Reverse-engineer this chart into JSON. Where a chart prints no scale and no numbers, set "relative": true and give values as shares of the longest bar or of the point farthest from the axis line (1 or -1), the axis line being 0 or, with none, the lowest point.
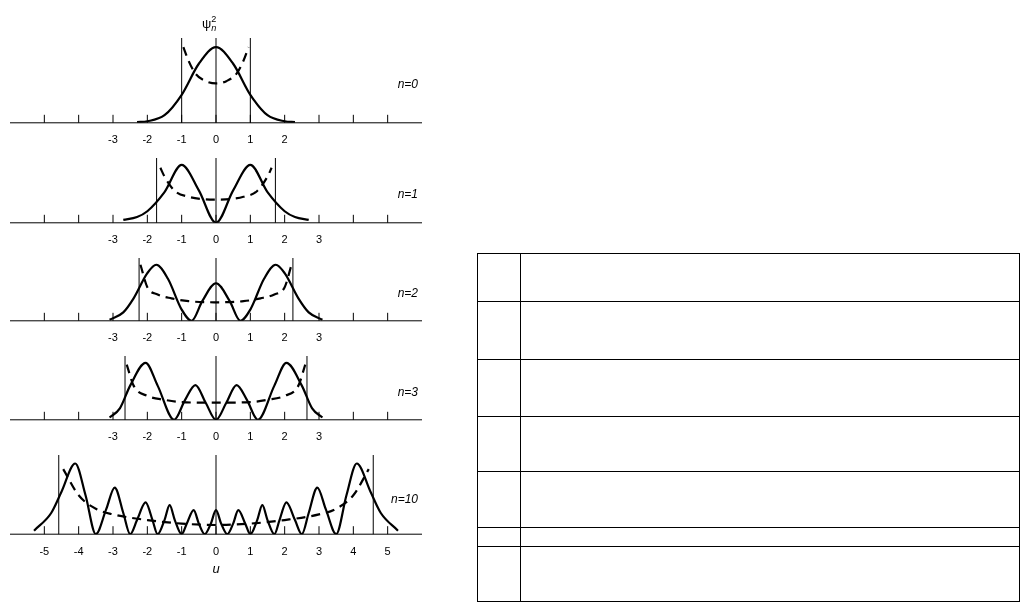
{
  "chart_data": [
    {
      "type": "line",
      "relative": true,
      "ylabel": "ψ$^{2}$$_{n}$",
      "annotations": [
        "n=0"
      ],
      "xlim": [
        -6,
        6
      ],
      "xticks": [
        {
          "value": -5,
          "label": null
        },
        {
          "value": -4,
          "label": null
        },
        -3,
        -2,
        -1,
        0,
        1,
        2,
        {
          "value": 3,
          "label": null
        },
        {
          "value": 4,
          "label": null
        },
        {
          "value": 5,
          "label": null
        }
      ],
      "ref_lines": [
        {
          "axis": "x",
          "value": -1
        },
        {
          "axis": "x",
          "value": 0
        },
        {
          "axis": "x",
          "value": 1
        }
      ],
      "series": [
        {
          "color": "#000000",
          "line_style": "solid",
          "x": [
            -2.3,
            -2,
            -1.5,
            -1,
            -0.5,
            0,
            0.5,
            1,
            1.5,
            2,
            2.3
          ],
          "values": [
            0.01,
            0.02,
            0.1,
            0.37,
            0.78,
            1,
            0.78,
            0.37,
            0.1,
            0.02,
            0.01
          ]
        },
        {
          "color": "#000000",
          "line_style": "dashed",
          "x": [
            -0.95,
            -0.8,
            -0.6,
            -0.3,
            0,
            0.3,
            0.6,
            0.8,
            0.95
          ],
          "values": [
            1,
            0.82,
            0.65,
            0.55,
            0.52,
            0.55,
            0.65,
            0.82,
            1
          ]
        }
      ]
    },
    {
      "type": "line",
      "relative": true,
      "annotations": [
        "n=1"
      ],
      "xlim": [
        -6,
        6
      ],
      "xticks": [
        {
          "value": -5,
          "label": null
        },
        {
          "value": -4,
          "label": null
        },
        -3,
        -2,
        -1,
        0,
        1,
        2,
        3,
        {
          "value": 4,
          "label": null
        },
        {
          "value": 5,
          "label": null
        }
      ],
      "ref_lines": [
        {
          "axis": "x",
          "value": -1.73
        },
        {
          "axis": "x",
          "value": 0
        },
        {
          "axis": "x",
          "value": 1.73
        }
      ],
      "series": [
        {
          "color": "#000000",
          "line_style": "solid",
          "x": [
            -2.7,
            -2.3,
            -2,
            -1.5,
            -1,
            -0.5,
            0,
            0.5,
            1,
            1.5,
            2,
            2.3,
            2.7
          ],
          "values": [
            0.05,
            0.1,
            0.2,
            0.53,
            1,
            0.56,
            0,
            0.56,
            1,
            0.53,
            0.2,
            0.1,
            0.05
          ]
        },
        {
          "color": "#000000",
          "line_style": "dashed",
          "x": [
            -1.62,
            -1.5,
            -1.2,
            -0.8,
            -0.4,
            0,
            0.4,
            0.8,
            1.2,
            1.5,
            1.62
          ],
          "values": [
            0.95,
            0.8,
            0.55,
            0.45,
            0.41,
            0.4,
            0.41,
            0.45,
            0.55,
            0.8,
            0.95
          ]
        }
      ]
    },
    {
      "type": "line",
      "relative": true,
      "annotations": [
        "n=2"
      ],
      "xlim": [
        -6,
        6
      ],
      "xticks": [
        {
          "value": -5,
          "label": null
        },
        {
          "value": -4,
          "label": null
        },
        -3,
        -2,
        -1,
        0,
        1,
        2,
        3,
        {
          "value": 4,
          "label": null
        },
        {
          "value": 5,
          "label": null
        }
      ],
      "ref_lines": [
        {
          "axis": "x",
          "value": -2.24
        },
        {
          "axis": "x",
          "value": 0
        },
        {
          "axis": "x",
          "value": 2.24
        }
      ],
      "series": [
        {
          "color": "#000000",
          "line_style": "solid",
          "x": [
            -3.1,
            -2.7,
            -2.4,
            -2,
            -1.74,
            -1.4,
            -1,
            -0.71,
            -0.4,
            0,
            0.4,
            0.71,
            1,
            1.4,
            1.74,
            2,
            2.4,
            2.7,
            3.1
          ],
          "values": [
            0.02,
            0.15,
            0.4,
            0.85,
            1,
            0.75,
            0.2,
            0,
            0.35,
            0.67,
            0.35,
            0,
            0.2,
            0.75,
            1,
            0.85,
            0.4,
            0.15,
            0.02
          ]
        },
        {
          "color": "#000000",
          "line_style": "dashed",
          "x": [
            -2.2,
            -2,
            -1.7,
            -1.3,
            -0.8,
            0,
            0.8,
            1.3,
            1.7,
            2,
            2.2
          ],
          "values": [
            1,
            0.6,
            0.47,
            0.4,
            0.35,
            0.33,
            0.35,
            0.4,
            0.47,
            0.6,
            1
          ]
        }
      ]
    },
    {
      "type": "line",
      "relative": true,
      "annotations": [
        "n=3"
      ],
      "xlim": [
        -6,
        6
      ],
      "xticks": [
        {
          "value": -5,
          "label": null
        },
        {
          "value": -4,
          "label": null
        },
        -3,
        -2,
        -1,
        0,
        1,
        2,
        3,
        {
          "value": 4,
          "label": null
        },
        {
          "value": 5,
          "label": null
        }
      ],
      "ref_lines": [
        {
          "axis": "x",
          "value": -2.65
        },
        {
          "axis": "x",
          "value": 0
        },
        {
          "axis": "x",
          "value": 2.65
        }
      ],
      "series": [
        {
          "color": "#000000",
          "line_style": "solid",
          "x": [
            -3.1,
            -2.8,
            -2.5,
            -2.05,
            -1.7,
            -1.22,
            -0.9,
            -0.6,
            -0.3,
            0,
            0.3,
            0.6,
            0.9,
            1.22,
            1.7,
            2.05,
            2.5,
            2.8,
            3.1
          ],
          "values": [
            0.04,
            0.2,
            0.6,
            1,
            0.6,
            0,
            0.35,
            0.61,
            0.3,
            0,
            0.3,
            0.61,
            0.35,
            0,
            0.6,
            1,
            0.6,
            0.2,
            0.04
          ]
        },
        {
          "color": "#000000",
          "line_style": "dashed",
          "x": [
            -2.6,
            -2.4,
            -2,
            -1.5,
            -1,
            0,
            1,
            1.5,
            2,
            2.4,
            2.6
          ],
          "values": [
            0.97,
            0.6,
            0.42,
            0.35,
            0.31,
            0.3,
            0.31,
            0.35,
            0.42,
            0.6,
            0.97
          ]
        }
      ]
    },
    {
      "type": "line",
      "relative": true,
      "xlabel": "u",
      "annotations": [
        "n=10"
      ],
      "xlim": [
        -6,
        6
      ],
      "xticks": [
        -5,
        -4,
        -3,
        -2,
        -1,
        0,
        1,
        2,
        3,
        4,
        5
      ],
      "ref_lines": [
        {
          "axis": "x",
          "value": -4.58
        },
        {
          "axis": "x",
          "value": 0
        },
        {
          "axis": "x",
          "value": 4.58
        }
      ],
      "series": [
        {
          "color": "#000000",
          "line_style": "solid",
          "x": [
            -5.3,
            -4.8,
            -4.5,
            -4.1,
            -3.8,
            -3.5,
            -3.2,
            -2.95,
            -2.7,
            -2.5,
            -2.3,
            -2.05,
            -1.85,
            -1.7,
            -1.5,
            -1.35,
            -1.2,
            -1,
            -0.85,
            -0.65,
            -0.5,
            -0.33,
            -0.15,
            0,
            0.15,
            0.33,
            0.5,
            0.65,
            0.85,
            1,
            1.2,
            1.35,
            1.5,
            1.7,
            1.85,
            2.05,
            2.3,
            2.5,
            2.7,
            2.95,
            3.2,
            3.5,
            3.8,
            4.1,
            4.5,
            4.8,
            5.3
          ],
          "values": [
            0.05,
            0.3,
            0.6,
            1,
            0.55,
            0,
            0.35,
            0.66,
            0.3,
            0,
            0.2,
            0.45,
            0.2,
            0,
            0.2,
            0.41,
            0.2,
            0,
            0.15,
            0.34,
            0.15,
            0,
            0.15,
            0.34,
            0.15,
            0,
            0.15,
            0.34,
            0.15,
            0,
            0.2,
            0.41,
            0.2,
            0,
            0.2,
            0.45,
            0.2,
            0,
            0.3,
            0.66,
            0.35,
            0,
            0.55,
            1,
            0.6,
            0.3,
            0.05
          ]
        },
        {
          "color": "#000000",
          "line_style": "dashed",
          "x": [
            -4.45,
            -4,
            -3.5,
            -3,
            -2,
            -1,
            0,
            1,
            2,
            3,
            3.5,
            4,
            4.45
          ],
          "values": [
            0.92,
            0.55,
            0.36,
            0.28,
            0.2,
            0.15,
            0.13,
            0.15,
            0.2,
            0.28,
            0.36,
            0.55,
            0.92
          ]
        }
      ]
    }
  ]
}
